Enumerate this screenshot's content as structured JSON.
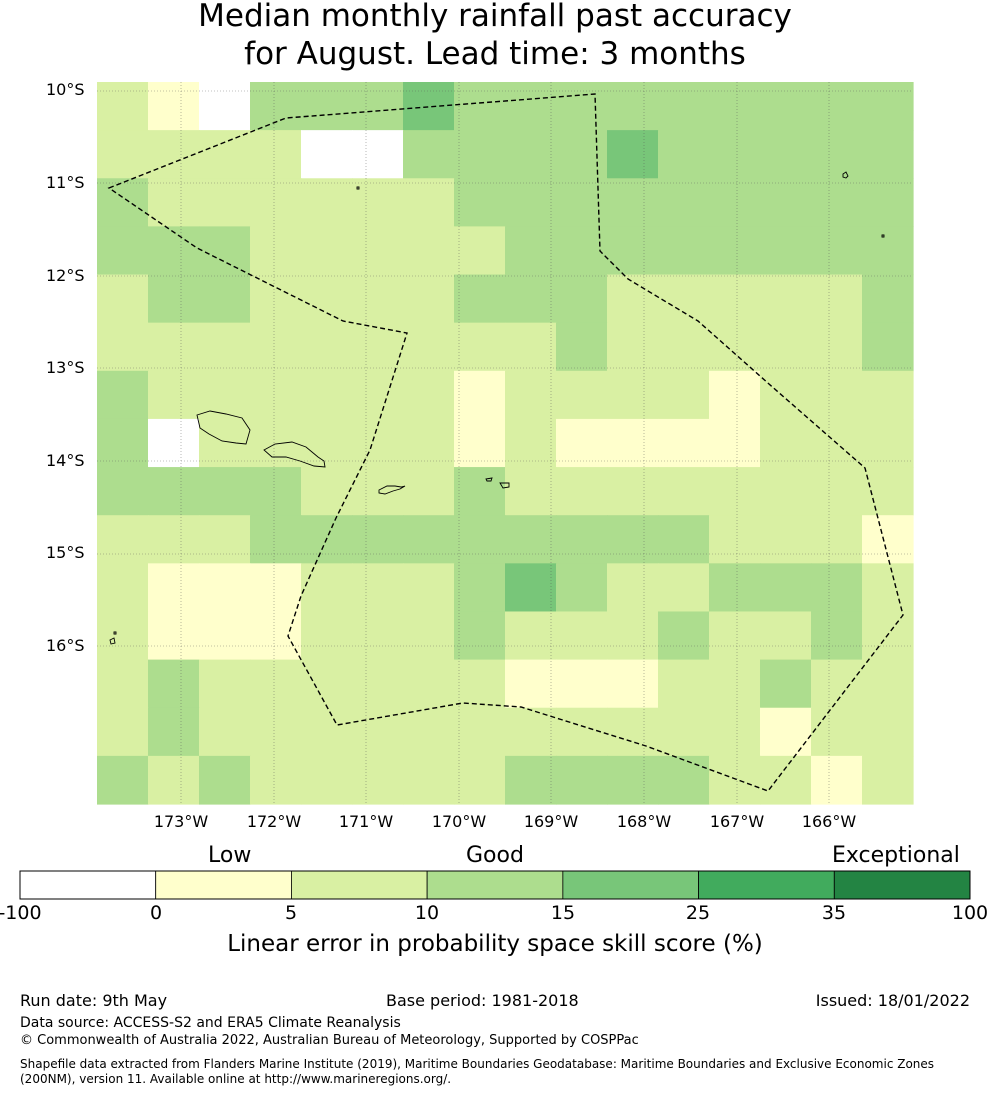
{
  "title_line1": "Median monthly rainfall past accuracy",
  "title_line2": "for August. Lead time: 3 months",
  "map": {
    "lat_labels": [
      "10°S",
      "11°S",
      "12°S",
      "13°S",
      "14°S",
      "15°S",
      "16°S"
    ],
    "lon_labels": [
      "173°W",
      "172°W",
      "171°W",
      "170°W",
      "169°W",
      "168°W",
      "167°W",
      "166°W"
    ],
    "grid_classes": [
      [
        2,
        1,
        0,
        3,
        3,
        3,
        4,
        3,
        3,
        3,
        3,
        3,
        3,
        3,
        3,
        3
      ],
      [
        2,
        2,
        2,
        2,
        0,
        0,
        3,
        3,
        3,
        3,
        4,
        3,
        3,
        3,
        3,
        3
      ],
      [
        3,
        2,
        2,
        2,
        2,
        2,
        2,
        3,
        3,
        3,
        3,
        3,
        3,
        3,
        3,
        3
      ],
      [
        3,
        3,
        3,
        2,
        2,
        2,
        2,
        2,
        3,
        3,
        3,
        3,
        3,
        3,
        3,
        3
      ],
      [
        2,
        3,
        3,
        2,
        2,
        2,
        2,
        3,
        3,
        3,
        2,
        2,
        2,
        2,
        2,
        3
      ],
      [
        2,
        2,
        2,
        2,
        2,
        2,
        2,
        2,
        2,
        3,
        2,
        2,
        2,
        2,
        2,
        3
      ],
      [
        3,
        2,
        2,
        2,
        2,
        2,
        2,
        1,
        2,
        2,
        2,
        2,
        1,
        2,
        2,
        2
      ],
      [
        3,
        -1,
        2,
        2,
        2,
        2,
        2,
        1,
        2,
        1,
        1,
        1,
        1,
        2,
        2,
        2
      ],
      [
        3,
        3,
        3,
        3,
        2,
        2,
        2,
        3,
        2,
        2,
        2,
        2,
        2,
        2,
        2,
        2
      ],
      [
        2,
        2,
        2,
        3,
        3,
        3,
        3,
        3,
        3,
        3,
        3,
        3,
        2,
        2,
        2,
        1
      ],
      [
        2,
        1,
        1,
        1,
        2,
        2,
        2,
        3,
        4,
        3,
        2,
        2,
        3,
        3,
        3,
        2
      ],
      [
        2,
        1,
        1,
        1,
        2,
        2,
        2,
        3,
        2,
        2,
        2,
        3,
        2,
        2,
        3,
        2
      ],
      [
        2,
        3,
        2,
        2,
        2,
        2,
        2,
        2,
        1,
        1,
        1,
        2,
        2,
        3,
        2,
        2
      ],
      [
        2,
        3,
        2,
        2,
        2,
        2,
        2,
        2,
        2,
        2,
        2,
        2,
        2,
        1,
        2,
        2
      ],
      [
        3,
        2,
        3,
        2,
        2,
        2,
        2,
        2,
        3,
        3,
        3,
        3,
        2,
        2,
        1,
        2
      ]
    ]
  },
  "legend": {
    "categories": [
      "Low",
      "Good",
      "Exceptional"
    ],
    "bins": [
      {
        "from": -100,
        "to": 0,
        "color": "#ffffff"
      },
      {
        "from": 0,
        "to": 5,
        "color": "#ffffcc"
      },
      {
        "from": 5,
        "to": 10,
        "color": "#d9f0a3"
      },
      {
        "from": 10,
        "to": 15,
        "color": "#addd8e"
      },
      {
        "from": 15,
        "to": 25,
        "color": "#78c679"
      },
      {
        "from": 25,
        "to": 35,
        "color": "#41ab5d"
      },
      {
        "from": 35,
        "to": 100,
        "color": "#238443"
      }
    ],
    "ticks": [
      "-100",
      "0",
      "5",
      "10",
      "15",
      "25",
      "35",
      "100"
    ],
    "label": "Linear error in probability space skill score (%)"
  },
  "footer": {
    "run_date": "Run date: 9th May",
    "base_period": "Base period: 1981-2018",
    "issued": "Issued: 18/01/2022",
    "data_source": "Data source: ACCESS-S2 and ERA5 Climate Reanalysis",
    "copyright": "© Commonwealth of Australia 2022, Australian Bureau of Meteorology, Supported by COSPPac",
    "shapefile": "Shapefile data extracted from Flanders Marine Institute (2019), Maritime Boundaries Geodatabase: Maritime Boundaries and Exclusive Economic Zones (200NM), version 11. Available online at http://www.marineregions.org/."
  }
}
